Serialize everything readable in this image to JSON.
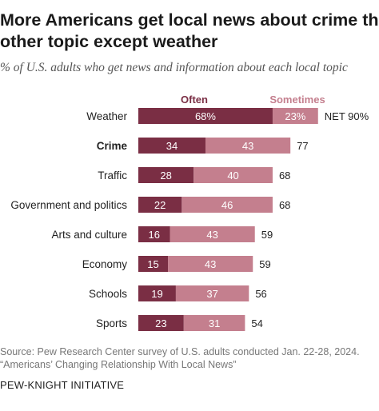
{
  "title_line1": "More Americans get local news about crime than any",
  "title_line2": "other topic except weather",
  "subtitle": "% of U.S. adults who get news and information about each local topic",
  "source_line1": "Source: Pew Research Center survey of U.S. adults conducted Jan. 22-28, 2024.",
  "source_line2": "“Americans’ Changing Relationship With Local News”",
  "footer": "PEW-KNIGHT INITIATIVE",
  "colors": {
    "often": "#7a2e44",
    "sometimes": "#c47f8e",
    "text": "#222222",
    "muted": "#777777"
  },
  "chart_data": {
    "type": "bar",
    "stacked": true,
    "orientation": "horizontal",
    "legend_position": "top",
    "categories": [
      "Weather",
      "Crime",
      "Traffic",
      "Government and politics",
      "Arts and culture",
      "Economy",
      "Schools",
      "Sports"
    ],
    "category_bold": [
      false,
      true,
      false,
      false,
      false,
      false,
      false,
      false
    ],
    "series": [
      {
        "name": "Often",
        "values": [
          68,
          34,
          28,
          22,
          16,
          15,
          19,
          23
        ],
        "labels": [
          "68%",
          "34",
          "28",
          "22",
          "16",
          "15",
          "19",
          "23"
        ]
      },
      {
        "name": "Sometimes",
        "values": [
          23,
          43,
          40,
          46,
          43,
          43,
          37,
          31
        ],
        "labels": [
          "23%",
          "43",
          "40",
          "46",
          "43",
          "43",
          "37",
          "31"
        ]
      }
    ],
    "net_labels": [
      "NET 90%",
      "77",
      "68",
      "68",
      "59",
      "59",
      "56",
      "54"
    ],
    "xlim": [
      0,
      100
    ]
  }
}
